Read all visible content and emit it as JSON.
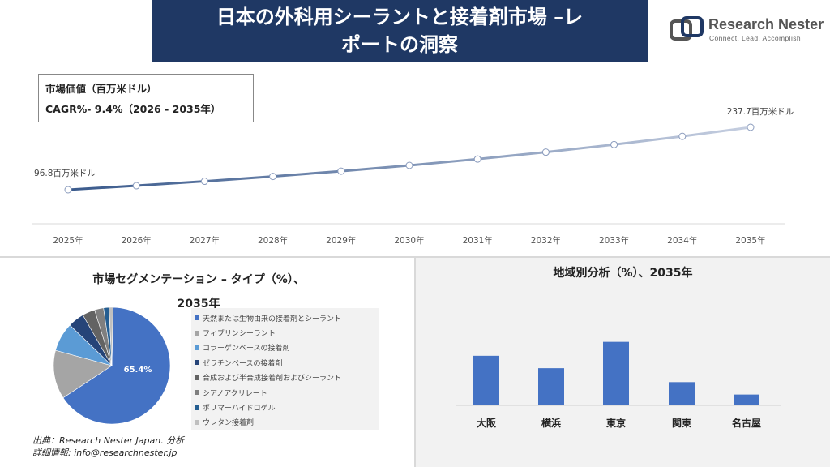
{
  "header": {
    "title_line1": "日本の外科用シーラントと接着剤市場 –レ",
    "title_line2": "ポートの洞察"
  },
  "logo": {
    "name": "Research Nester",
    "tagline": "Connect. Lead. Accomplish"
  },
  "info_box": {
    "market_value_label": "市場価値（百万米ドル）",
    "cagr_label": "CAGR%- 9.4%（2026 - 2035年）"
  },
  "segmentation": {
    "title_line1": "市場セグメンテーション – タイプ（%）、",
    "title_line2": "2035年"
  },
  "region": {
    "title": "地域別分析（%）、2035年"
  },
  "source": {
    "line1": "出典：Research Nester Japan. 分析",
    "line2": "詳細情報: info@researchnester.jp"
  },
  "colors": {
    "banner": "#1f3864",
    "line_start": "#3a5a8c",
    "line_end": "#c5cee0",
    "bar": "#4472c4"
  },
  "chart_data": [
    {
      "type": "line",
      "x": [
        "2025年",
        "2026年",
        "2027年",
        "2028年",
        "2029年",
        "2030年",
        "2031年",
        "2032年",
        "2033年",
        "2034年",
        "2035年"
      ],
      "values": [
        96.8,
        105.9,
        115.9,
        126.8,
        138.7,
        151.7,
        166.0,
        181.6,
        198.7,
        217.3,
        237.7
      ],
      "data_labels": {
        "first": "96.8百万米ドル",
        "last": "237.7百万米ドル"
      },
      "ylim": [
        0,
        260
      ],
      "grid": false
    },
    {
      "type": "pie",
      "labels": [
        "天然または生物由来の接着剤とシーラント",
        "フィブリンシーラント",
        "コラーゲンベースの接着剤",
        "ゼラチンベースの接着剤",
        "合成および半合成接着剤およびシーラント",
        "シアノアクリレート",
        "ポリマーハイドロゲル",
        "ウレタン接着剤"
      ],
      "values": [
        65.4,
        13.5,
        8.0,
        4.5,
        3.5,
        2.5,
        1.5,
        1.1
      ],
      "value_label": "65.4%",
      "colors": [
        "#4472c4",
        "#a5a5a5",
        "#5b9bd5",
        "#264478",
        "#636363",
        "#7f7f7f",
        "#255e91",
        "#bfbfbf"
      ],
      "legend_position": "right"
    },
    {
      "type": "bar",
      "categories": [
        "大阪",
        "横浜",
        "東京",
        "関東",
        "名古屋"
      ],
      "values": [
        32,
        24,
        41,
        15,
        7
      ],
      "ylim": [
        0,
        45
      ],
      "grid": false
    }
  ]
}
